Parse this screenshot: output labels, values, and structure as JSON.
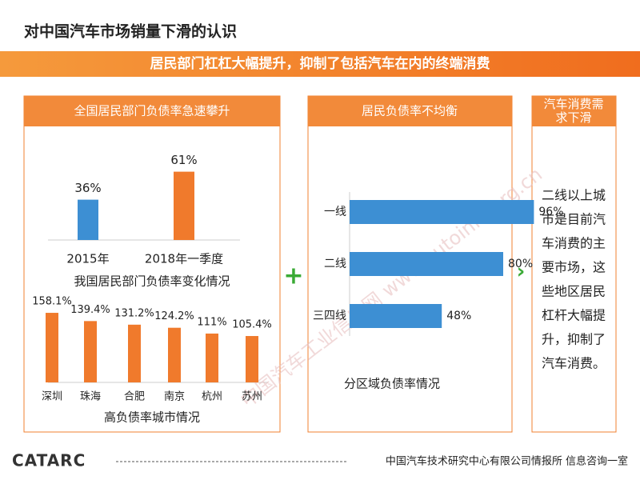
{
  "title": "对中国汽车市场销量下滑的认识",
  "banner": "居民部门杠杠大幅提升，抑制了包括汽车在内的终端消费",
  "panels": [
    {
      "header": [
        "全国居民部门负债率急速攀升"
      ]
    },
    {
      "header": [
        "居民负债率不均衡"
      ]
    },
    {
      "header": [
        "汽车消费需",
        "求下滑"
      ],
      "text": [
        "二线以上城",
        "市是目前汽",
        "车消费的主",
        "要市场，这",
        "些地区居民",
        "杠杆大幅提",
        "升，抑制了",
        "汽车消费。"
      ]
    }
  ],
  "watermark": "中国汽车工业信息网 www.autoinfo.org.cn",
  "logo": "CATARC",
  "footer": "中国汽车技术研究中心有限公司情报所  信息咨询一室",
  "chart_data": [
    {
      "type": "bar",
      "caption": "我国居民部门负债率变化情况",
      "categories": [
        "2015年",
        "2018年一季度"
      ],
      "values": [
        36,
        61
      ],
      "value_labels": [
        "36%",
        "61%"
      ],
      "colors": [
        "#3d8fd3",
        "#f07a2c"
      ]
    },
    {
      "type": "bar",
      "caption": "高负债率城市情况",
      "categories": [
        "深圳",
        "珠海",
        "合肥",
        "南京",
        "杭州",
        "苏州"
      ],
      "values": [
        158.1,
        139.4,
        131.2,
        124.2,
        111,
        105.4
      ],
      "value_labels": [
        "158.1%",
        "139.4%",
        "131.2%",
        "124.2%",
        "111%",
        "105.4%"
      ],
      "color": "#f07a2c"
    },
    {
      "type": "hbar",
      "caption": "分区域负债率情况",
      "categories": [
        "一线",
        "二线",
        "三四线"
      ],
      "values": [
        96,
        80,
        48
      ],
      "value_labels": [
        "96%",
        "80%",
        "48%"
      ],
      "color": "#3d8fd3"
    }
  ]
}
